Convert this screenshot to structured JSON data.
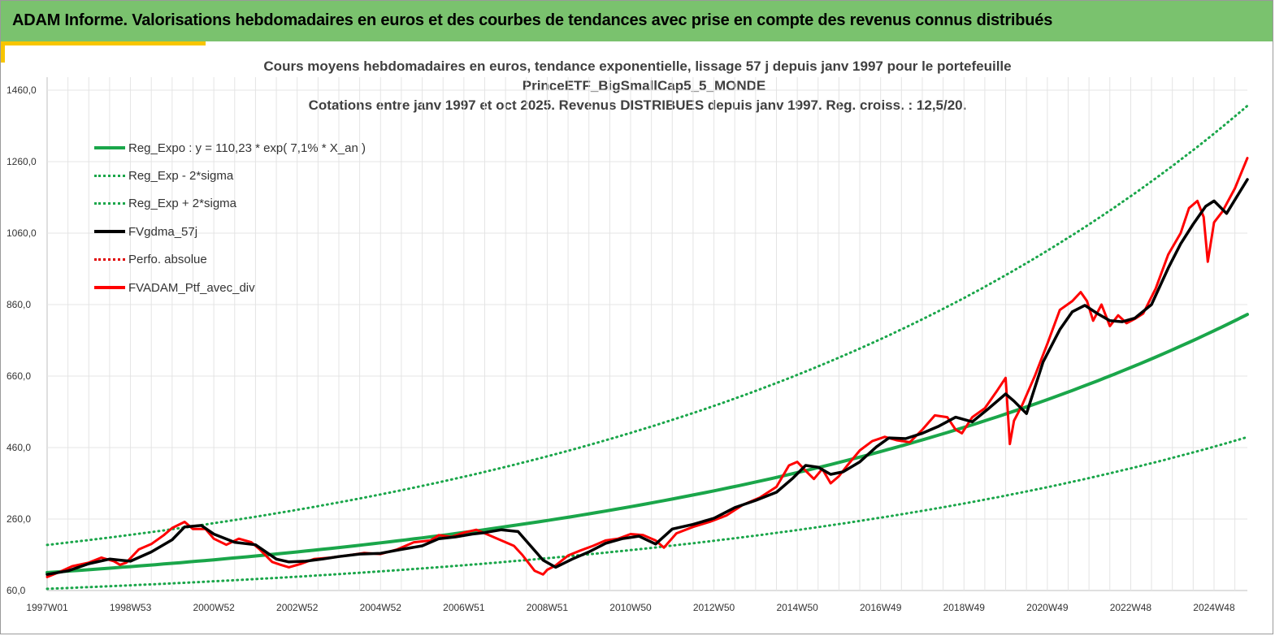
{
  "header": {
    "title": "ADAM Informe. Valorisations hebdomadaires en euros et des courbes de tendances avec prise en compte des revenus connus distribués"
  },
  "chart_data": {
    "type": "line",
    "title": "Cours moyens hebdomadaires  en euros, tendance exponentielle, lissage 57 j depuis janv 1997 pour le portefeuille",
    "subtitle_1": "PrinceETF_BigSmallCap5_5_MONDE",
    "subtitle_2": "Cotations  entre janv 1997 et oct 2025. Revenus DISTRIBUES depuis janv 1997. Reg. croiss. : 12,5/20.",
    "xlabel": "",
    "ylabel": "",
    "ylim": [
      60,
      1500
    ],
    "xlim": [
      1997.0,
      2025.8
    ],
    "y_ticks": [
      60,
      260,
      460,
      660,
      860,
      1060,
      1260,
      1460
    ],
    "y_tick_labels": [
      "60,0",
      "260,0",
      "460,0",
      "660,0",
      "860,0",
      "1060,0",
      "1260,0",
      "1460,0"
    ],
    "x_ticks": [
      1997.0,
      1999.0,
      2001.0,
      2003.0,
      2005.0,
      2007.0,
      2009.0,
      2011.0,
      2013.0,
      2015.0,
      2017.0,
      2019.0,
      2021.0,
      2023.0,
      2025.0
    ],
    "x_tick_labels": [
      "1997W01",
      "1998W53",
      "2000W52",
      "2002W52",
      "2004W52",
      "2006W51",
      "2008W51",
      "2010W50",
      "2012W50",
      "2014W50",
      "2016W49",
      "2018W49",
      "2020W49",
      "2022W48",
      "2024W48"
    ],
    "grid": true,
    "legend_position": "top-left",
    "colors": {
      "reg_expo": "#1aa64a",
      "sigma": "#1aa64a",
      "fvgdma": "#000000",
      "perfo": "#e00000",
      "fvadam": "#ff0000",
      "grid": "#e4e4e4"
    },
    "series": [
      {
        "name": "Reg_Expo : y = 110,23 * exp( 7,1% *  X_an )",
        "style": "solid",
        "formula": "110.23*exp(0.071*(year-1997))",
        "x": [
          1997.0,
          1999.0,
          2001.0,
          2003.0,
          2005.0,
          2007.0,
          2009.0,
          2011.0,
          2013.0,
          2015.0,
          2017.0,
          2019.0,
          2021.0,
          2023.0,
          2025.0,
          2025.8
        ],
        "values": [
          110.2,
          126.9,
          146.0,
          168.0,
          193.3,
          222.4,
          255.9,
          294.5,
          338.9,
          390.0,
          448.8,
          516.4,
          594.2,
          683.8,
          786.8,
          832.5
        ]
      },
      {
        "name": "Reg_Exp - 2*sigma",
        "style": "dotted",
        "x": [
          1997.0,
          1999.0,
          2001.0,
          2003.0,
          2005.0,
          2007.0,
          2009.0,
          2011.0,
          2013.0,
          2015.0,
          2017.0,
          2019.0,
          2021.0,
          2023.0,
          2025.0,
          2025.8
        ],
        "values": [
          64.8,
          74.6,
          85.8,
          98.7,
          113.6,
          130.7,
          150.4,
          173.1,
          199.2,
          229.2,
          263.8,
          303.5,
          349.2,
          401.9,
          462.4,
          489.3
        ]
      },
      {
        "name": "Reg_Exp + 2*sigma",
        "style": "dotted",
        "x": [
          1997.0,
          1999.0,
          2001.0,
          2003.0,
          2005.0,
          2007.0,
          2009.0,
          2011.0,
          2013.0,
          2015.0,
          2017.0,
          2019.0,
          2021.0,
          2023.0,
          2025.0,
          2025.8
        ],
        "values": [
          187.5,
          215.8,
          248.3,
          285.8,
          328.8,
          378.4,
          435.4,
          501.0,
          576.5,
          663.4,
          763.4,
          878.5,
          1010.9,
          1163.2,
          1338.5,
          1416.2
        ]
      },
      {
        "name": "FVgdma_57j",
        "style": "solid",
        "x": [
          1997.0,
          1997.5,
          1998.0,
          1998.5,
          1998.75,
          1999.0,
          1999.5,
          2000.0,
          2000.3,
          2000.7,
          2001.0,
          2001.5,
          2002.0,
          2002.5,
          2002.8,
          2003.2,
          2003.6,
          2004.0,
          2004.5,
          2005.0,
          2005.5,
          2006.0,
          2006.4,
          2006.8,
          2007.2,
          2007.5,
          2007.9,
          2008.3,
          2008.6,
          2008.9,
          2009.2,
          2009.6,
          2010.0,
          2010.4,
          2010.8,
          2011.2,
          2011.6,
          2012.0,
          2012.5,
          2013.0,
          2013.5,
          2014.0,
          2014.5,
          2014.9,
          2015.2,
          2015.5,
          2015.8,
          2016.1,
          2016.5,
          2016.9,
          2017.2,
          2017.6,
          2018.0,
          2018.4,
          2018.8,
          2019.2,
          2019.6,
          2020.0,
          2020.2,
          2020.5,
          2020.9,
          2021.3,
          2021.6,
          2021.9,
          2022.2,
          2022.5,
          2022.8,
          2023.1,
          2023.5,
          2023.9,
          2024.2,
          2024.5,
          2024.8,
          2025.0,
          2025.3,
          2025.8
        ],
        "values": [
          105,
          115,
          135,
          148,
          145,
          142,
          168,
          202,
          238,
          242,
          218,
          195,
          188,
          148,
          140,
          142,
          148,
          155,
          162,
          164,
          175,
          185,
          205,
          210,
          218,
          222,
          230,
          225,
          185,
          145,
          125,
          148,
          168,
          192,
          205,
          212,
          190,
          232,
          245,
          262,
          292,
          312,
          335,
          375,
          410,
          405,
          385,
          392,
          420,
          462,
          487,
          485,
          500,
          520,
          545,
          532,
          570,
          610,
          590,
          555,
          700,
          790,
          840,
          858,
          835,
          815,
          812,
          822,
          860,
          962,
          1030,
          1085,
          1135,
          1150,
          1115,
          1210
        ]
      },
      {
        "name": "Perfo. absolue",
        "style": "dotted",
        "x": [],
        "values": []
      },
      {
        "name": "FVADAM_Ptf_avec_div",
        "style": "solid",
        "x": [
          1997.0,
          1997.3,
          1997.6,
          1998.0,
          1998.3,
          1998.6,
          1998.75,
          1998.9,
          1999.2,
          1999.5,
          1999.8,
          2000.0,
          2000.3,
          2000.5,
          2000.8,
          2001.0,
          2001.3,
          2001.6,
          2001.9,
          2002.1,
          2002.4,
          2002.6,
          2002.8,
          2003.1,
          2003.4,
          2003.8,
          2004.2,
          2004.6,
          2005.0,
          2005.4,
          2005.8,
          2006.2,
          2006.4,
          2006.7,
          2007.0,
          2007.3,
          2007.6,
          2007.9,
          2008.2,
          2008.4,
          2008.7,
          2008.9,
          2009.0,
          2009.2,
          2009.5,
          2009.8,
          2010.1,
          2010.4,
          2010.7,
          2011.0,
          2011.3,
          2011.6,
          2011.8,
          2012.1,
          2012.5,
          2012.9,
          2013.3,
          2013.7,
          2014.1,
          2014.5,
          2014.8,
          2015.0,
          2015.2,
          2015.4,
          2015.6,
          2015.8,
          2016.0,
          2016.2,
          2016.5,
          2016.8,
          2017.1,
          2017.4,
          2017.7,
          2018.0,
          2018.3,
          2018.6,
          2018.8,
          2018.95,
          2019.2,
          2019.5,
          2019.8,
          2020.0,
          2020.1,
          2020.2,
          2020.4,
          2020.7,
          2021.0,
          2021.3,
          2021.6,
          2021.8,
          2021.95,
          2022.1,
          2022.3,
          2022.5,
          2022.7,
          2022.9,
          2023.1,
          2023.3,
          2023.6,
          2023.9,
          2024.2,
          2024.4,
          2024.6,
          2024.75,
          2024.85,
          2025.0,
          2025.2,
          2025.5,
          2025.8
        ],
        "values": [
          98,
          112,
          128,
          138,
          152,
          142,
          132,
          138,
          175,
          190,
          215,
          235,
          252,
          232,
          232,
          205,
          188,
          205,
          195,
          175,
          140,
          132,
          125,
          135,
          148,
          152,
          158,
          165,
          162,
          175,
          195,
          200,
          215,
          210,
          222,
          230,
          215,
          200,
          185,
          160,
          115,
          105,
          118,
          130,
          158,
          172,
          185,
          200,
          205,
          218,
          215,
          200,
          180,
          220,
          238,
          252,
          270,
          300,
          320,
          350,
          410,
          420,
          395,
          372,
          400,
          360,
          380,
          410,
          452,
          478,
          490,
          480,
          475,
          510,
          550,
          545,
          510,
          500,
          545,
          570,
          620,
          655,
          470,
          535,
          580,
          660,
          750,
          845,
          870,
          895,
          870,
          815,
          860,
          800,
          830,
          808,
          820,
          835,
          905,
          1000,
          1060,
          1130,
          1150,
          1105,
          980,
          1090,
          1120,
          1185,
          1270
        ]
      }
    ]
  }
}
